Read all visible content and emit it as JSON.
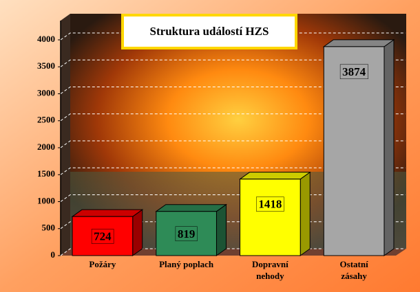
{
  "chart_data": {
    "type": "bar3d",
    "title": "Struktura událostí HZS",
    "categories": [
      "Požáry",
      "Planý poplach",
      "Dopravní nehody",
      "Ostatní zásahy"
    ],
    "values": [
      724,
      819,
      1418,
      3874
    ],
    "colors": [
      "#ff0000",
      "#2e8b57",
      "#ffff00",
      "#a6a6a6"
    ],
    "ylim": [
      0,
      4000
    ],
    "yticks": [
      0,
      500,
      1000,
      1500,
      2000,
      2500,
      3000,
      3500,
      4000
    ],
    "grid": true
  }
}
